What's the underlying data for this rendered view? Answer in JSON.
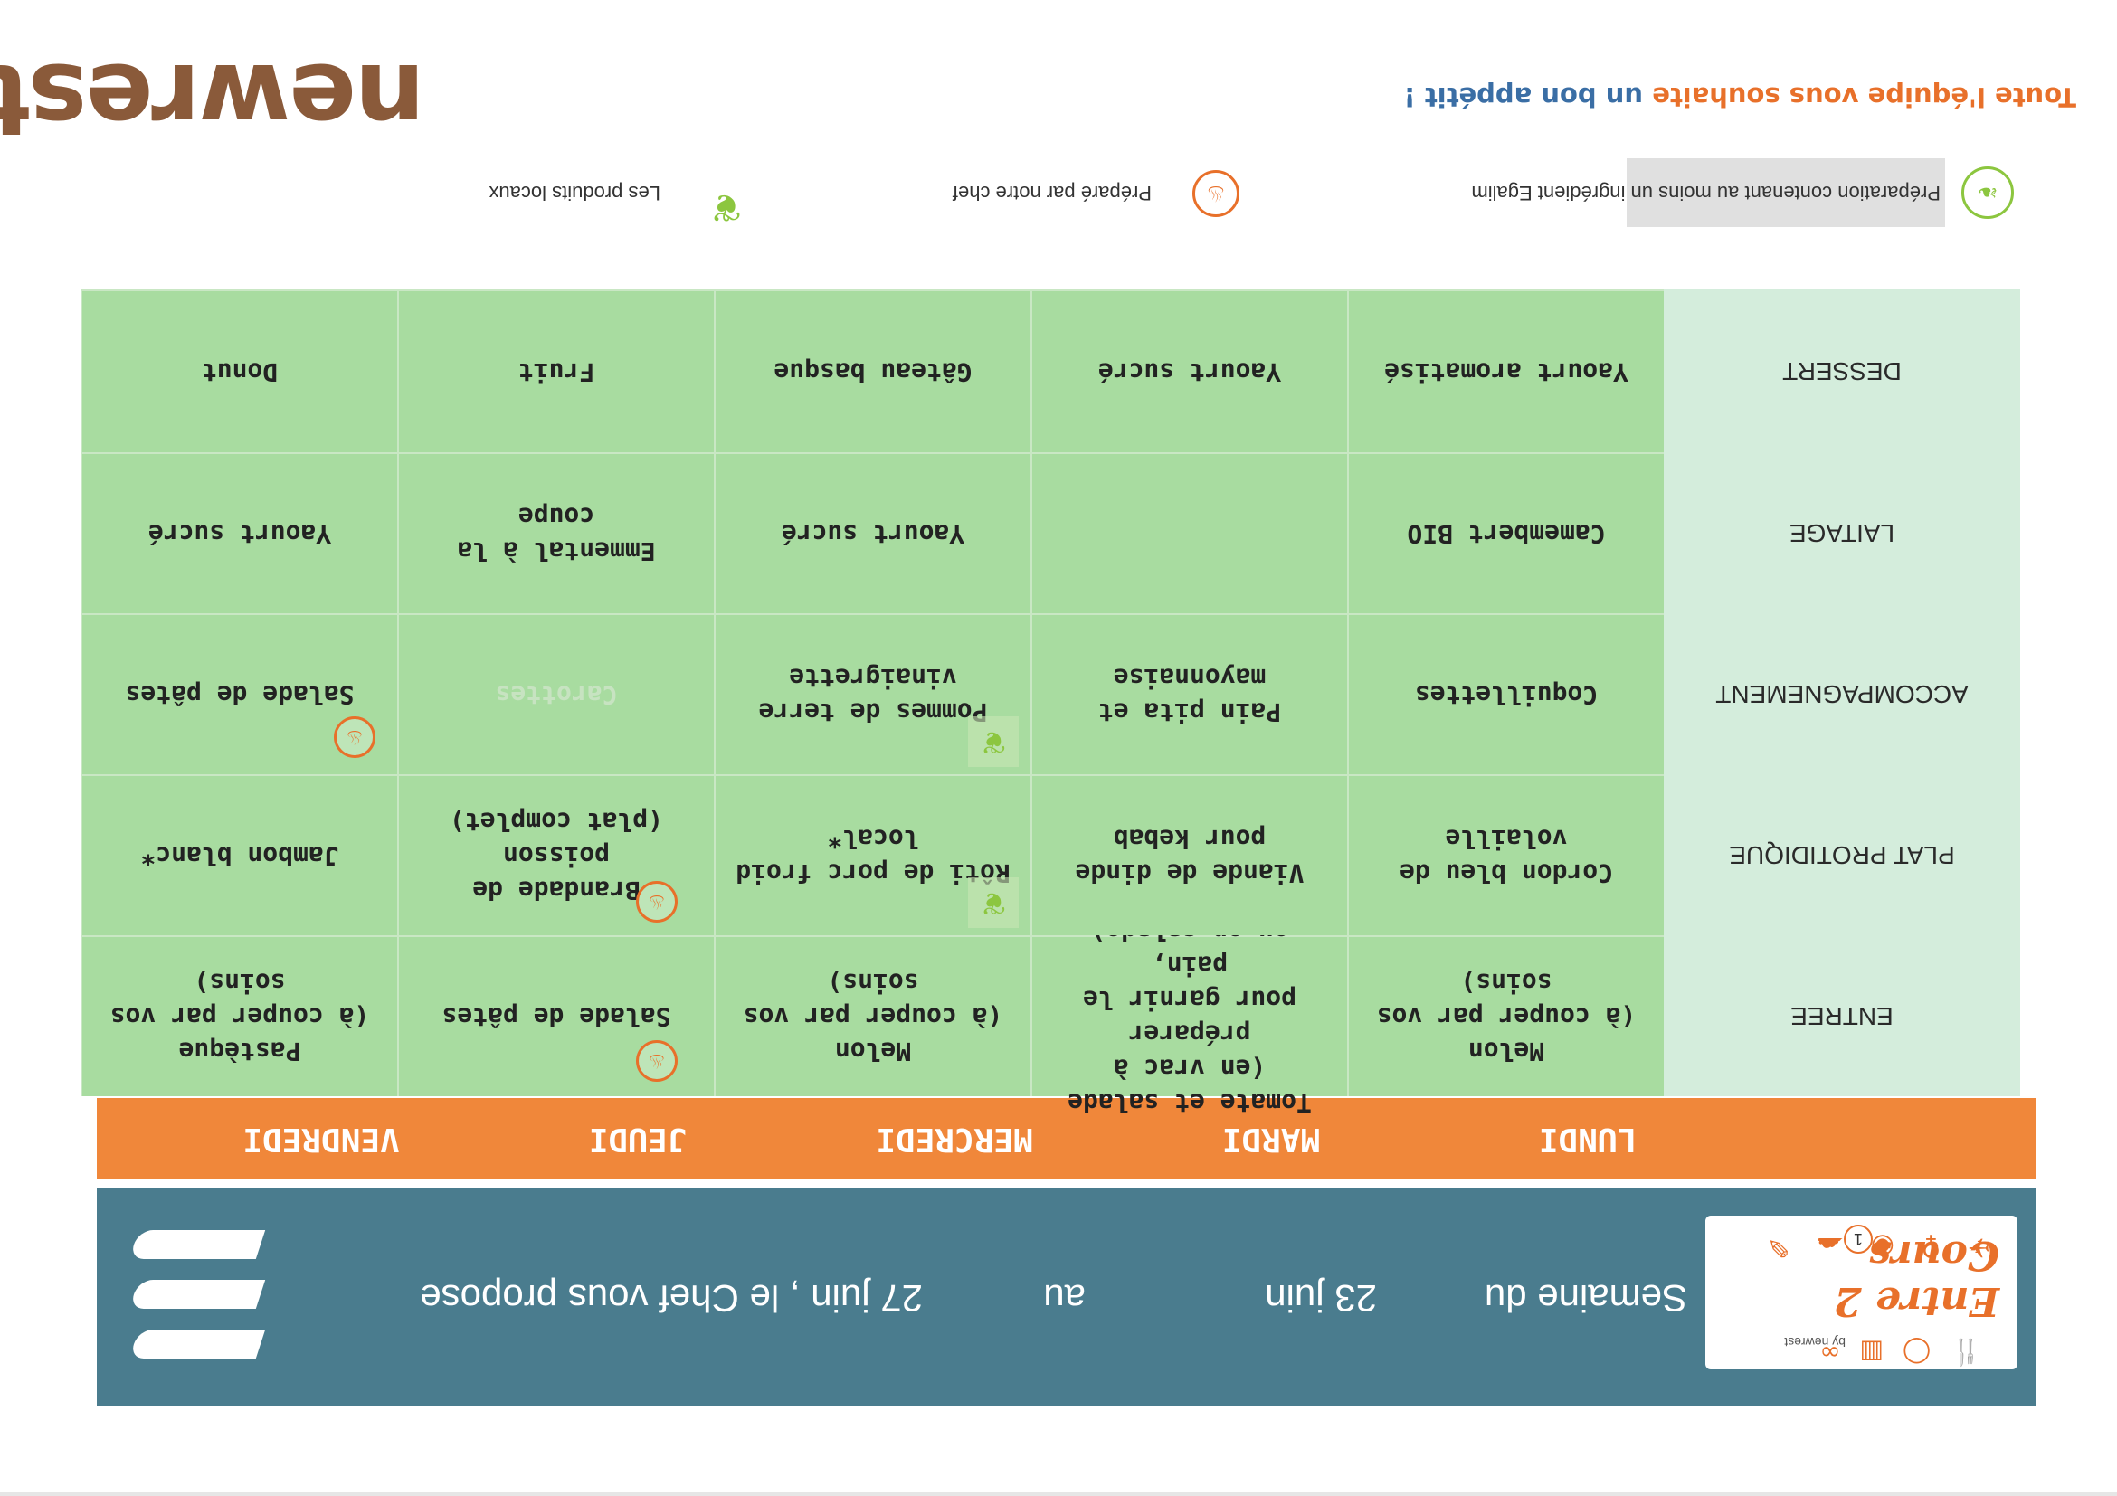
{
  "header": {
    "logo_title": "Entre 2 Cours",
    "logo_by": "by newrest",
    "week_prefix": "Semaine du",
    "start_date": "23 juin",
    "connector": "au",
    "end_text": "27 juin , le Chef vous propose",
    "page_number": "1"
  },
  "days": [
    "LUNDI",
    "MARDI",
    "MERCREDI",
    "JEUDI",
    "VENDREDI"
  ],
  "rows": [
    {
      "label": "ENTREE",
      "cells": [
        "Melon\n(à couper par vos\nsoins)",
        "Tomate et salade\n(en vrac à préparer\npour garnir le pain,\nou en salade)",
        "Melon\n(à couper par vos\nsoins)",
        "Salade de pâtes",
        "Pastèque\n(à couper par vos\nsoins)"
      ]
    },
    {
      "label": "PLAT PROTIDIQUE",
      "cells": [
        "Cordon bleu de\nvolaille",
        "Viande de dinde\npour kebab",
        "Rôti de porc froid\nlocal*",
        "Brandade de\npoisson\n(plat complet)",
        "Jambon blanc*"
      ]
    },
    {
      "label": "ACCOMPAGNEMENT",
      "cells": [
        "Coquillettes",
        "Pain pita et\nmayonnaise",
        "Pommes de terre\nvinaigrette",
        "Carottes",
        "Salade de pâtes"
      ]
    },
    {
      "label": "LAITAGE",
      "cells": [
        "Camembert BIO",
        "",
        "Yaourt sucré",
        "Emmental à la\ncoupe",
        "Yaourt sucré"
      ]
    },
    {
      "label": "DESSERT",
      "cells": [
        "Yaourt aromatisé",
        "Yaourt sucré",
        "Gâteau basque",
        "Fruit",
        "Donut"
      ]
    }
  ],
  "legend": {
    "egalim": "Préparation contenant au moins un ingrédient Egalim",
    "chef": "Préparé par notre chef",
    "local": "Les produits locaux"
  },
  "tagline": {
    "part1": "Toute l'équipe vous souhaite",
    "part2": "un bon appétit !"
  },
  "brand": "newrest",
  "colors": {
    "banner": "#4a7c8e",
    "day_header": "#f0873a",
    "cell": "#a8dca0",
    "row_header": "#d4eddc",
    "accent_orange": "#e8702a",
    "accent_green": "#8cc63f"
  }
}
